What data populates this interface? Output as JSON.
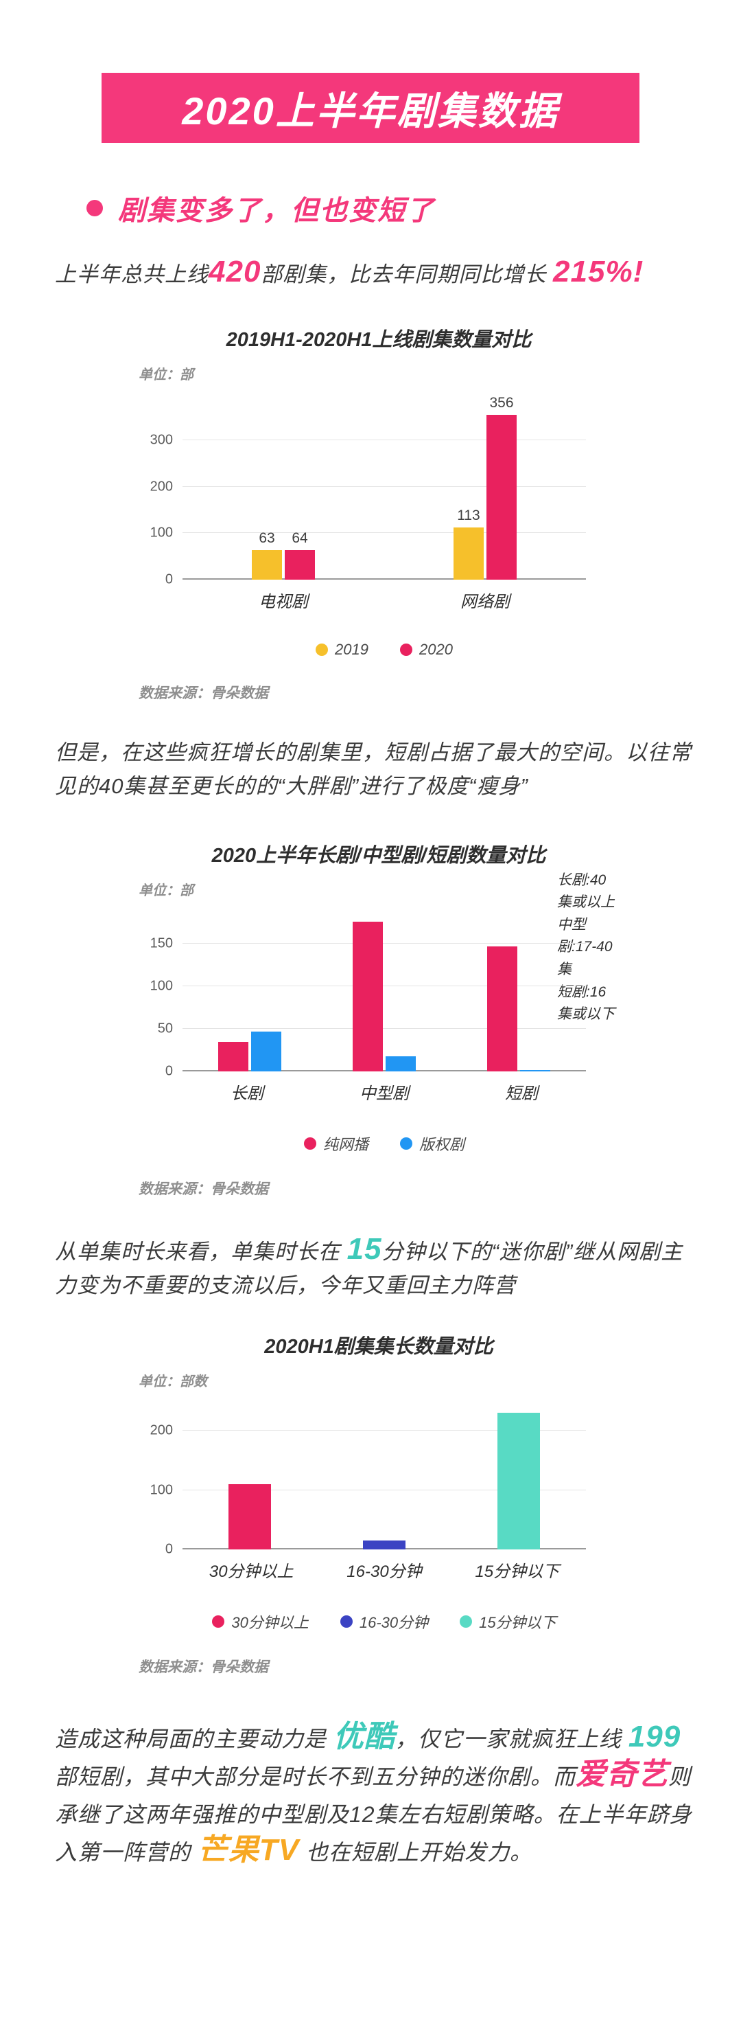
{
  "colors": {
    "accent_pink": "#F4387B",
    "bar_pink": "#E9215E",
    "bar_yellow": "#F6C02B",
    "bar_blue": "#2196F3",
    "bar_indigo": "#3B43C3",
    "bar_teal": "#58DAC4",
    "brand_teal": "#3EC9B9",
    "brand_orange": "#F7A823",
    "text_dark": "#3B3B3B",
    "text_gray": "#8F8F8F"
  },
  "banner": {
    "title": "2020上半年剧集数据"
  },
  "section": {
    "heading": "剧集变多了，但也变短了"
  },
  "paragraphs": {
    "p1": {
      "segments": [
        {
          "text": "上半年总共上线",
          "style": "normal",
          "name": "text-segment"
        },
        {
          "text": "420",
          "style": "pink-big",
          "name": "count-420-highlight"
        },
        {
          "text": "部剧集，比去年同期同比增长 ",
          "style": "normal",
          "name": "text-segment"
        },
        {
          "text": "215%!",
          "style": "pink-big",
          "name": "percent-215-highlight"
        }
      ]
    },
    "p2": {
      "segments": [
        {
          "text": "但是，在这些疯狂增长的剧集里，短剧占据了最大的空间。以往常见的40集甚至更长的的“大胖剧”进行了极度“瘦身”",
          "style": "normal",
          "name": "text-segment"
        }
      ]
    },
    "p3": {
      "segments": [
        {
          "text": "从单集时长来看，单集时长在 ",
          "style": "normal",
          "name": "text-segment"
        },
        {
          "text": "15",
          "style": "teal-big",
          "name": "minutes-15-highlight"
        },
        {
          "text": "分钟以下的“迷你剧”继从网剧主力变为不重要的支流以后，今年又重回主力阵营",
          "style": "normal",
          "name": "text-segment"
        }
      ]
    },
    "p4": {
      "segments": [
        {
          "text": "造成这种局面的主要动力是 ",
          "style": "normal",
          "name": "text-segment"
        },
        {
          "text": "优酷",
          "style": "teal-big",
          "name": "youku-highlight"
        },
        {
          "text": "，仅它一家就疯狂上线 ",
          "style": "normal",
          "name": "text-segment"
        },
        {
          "text": "199",
          "style": "teal-big",
          "name": "count-199-highlight"
        },
        {
          "text": " 部短剧，其中大部分是时长不到五分钟的迷你剧。而",
          "style": "normal",
          "name": "text-segment"
        },
        {
          "text": "爱奇艺",
          "style": "pink-big",
          "name": "iqiyi-highlight"
        },
        {
          "text": "则承继了这两年强推的中型剧及12集左右短剧策略。在上半年跻身入第一阵营的 ",
          "style": "normal",
          "name": "text-segment"
        },
        {
          "text": "芒果TV",
          "style": "orange-big",
          "name": "mango-tv-highlight"
        },
        {
          "text": " 也在短剧上开始发力。",
          "style": "normal",
          "name": "text-segment"
        }
      ]
    }
  },
  "chart_data": [
    {
      "type": "bar",
      "title": "2019H1-2020H1上线剧集数量对比",
      "unit_label": "单位：部",
      "categories": [
        "电视剧",
        "网络剧"
      ],
      "series": [
        {
          "name": "2019",
          "color": "#F6C02B",
          "values": [
            63,
            113
          ]
        },
        {
          "name": "2020",
          "color": "#E9215E",
          "values": [
            64,
            356
          ]
        }
      ],
      "ylim": [
        0,
        400
      ],
      "yticks": [
        0,
        100,
        200,
        300
      ],
      "show_value_labels": true,
      "legend_position": "bottom",
      "source": "数据来源：骨朵数据"
    },
    {
      "type": "bar",
      "title": "2020上半年长剧/中型剧/短剧数量对比",
      "unit_label": "单位：部",
      "annotation": [
        "长剧:40集或以上",
        "中型剧:17-40集",
        "短剧:16集或以下"
      ],
      "categories": [
        "长剧",
        "中型剧",
        "短剧"
      ],
      "series": [
        {
          "name": "纯网播",
          "color": "#E9215E",
          "values": [
            35,
            176,
            147
          ]
        },
        {
          "name": "版权剧",
          "color": "#2196F3",
          "values": [
            47,
            18,
            2
          ]
        }
      ],
      "ylim": [
        0,
        190
      ],
      "yticks": [
        0,
        50,
        100,
        150
      ],
      "show_value_labels": false,
      "legend_position": "bottom",
      "source": "数据来源：骨朵数据"
    },
    {
      "type": "bar",
      "title": "2020H1剧集集长数量对比",
      "unit_label": "单位：部数",
      "categories": [
        "30分钟以上",
        "16-30分钟",
        "15分钟以下"
      ],
      "values": [
        110,
        15,
        230
      ],
      "colors": [
        "#E9215E",
        "#3B43C3",
        "#58DAC4"
      ],
      "legend": [
        {
          "label": "30分钟以上",
          "color": "#E9215E"
        },
        {
          "label": "16-30分钟",
          "color": "#3B43C3"
        },
        {
          "label": "15分钟以下",
          "color": "#58DAC4"
        }
      ],
      "ylim": [
        0,
        250
      ],
      "yticks": [
        0,
        100,
        200
      ],
      "show_value_labels": false,
      "legend_position": "bottom",
      "source": "数据来源：骨朵数据"
    }
  ]
}
